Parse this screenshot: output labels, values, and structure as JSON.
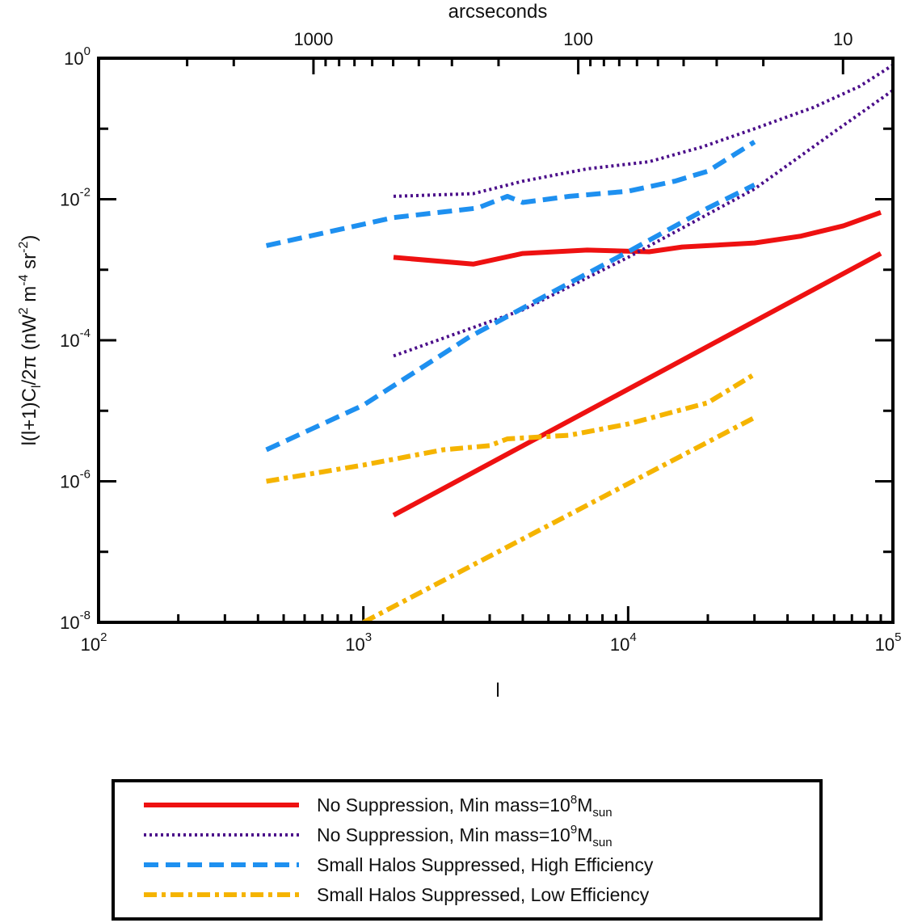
{
  "chart_data": {
    "type": "line",
    "xscale": "log",
    "yscale": "log",
    "xlim": [
      100,
      100000
    ],
    "ylim": [
      1e-08,
      1
    ],
    "xlabel": "l",
    "ylabel": {
      "prefix": "l(l+1)C",
      "sub": "l",
      "middle": "/2π  (nW",
      "sup1": "2",
      "mid2": " m",
      "sup2": "-4",
      "mid3": " sr",
      "sup3": "-2",
      "suffix": ")"
    },
    "top_axis": {
      "title": "arcseconds",
      "ticks": [
        {
          "label": "1000",
          "l": 648
        },
        {
          "label": "100",
          "l": 6480
        },
        {
          "label": "10",
          "l": 64800
        }
      ]
    },
    "x_ticks": [
      {
        "base": "10",
        "exp": "2",
        "value": 100
      },
      {
        "base": "10",
        "exp": "3",
        "value": 1000
      },
      {
        "base": "10",
        "exp": "4",
        "value": 10000
      },
      {
        "base": "10",
        "exp": "5",
        "value": 100000
      }
    ],
    "y_ticks": [
      {
        "base": "10",
        "exp": "0",
        "value": 1
      },
      {
        "base": "10",
        "exp": "-2",
        "value": 0.01
      },
      {
        "base": "10",
        "exp": "-4",
        "value": 0.0001
      },
      {
        "base": "10",
        "exp": "-6",
        "value": 1e-06
      },
      {
        "base": "10",
        "exp": "-8",
        "value": 1e-08
      }
    ],
    "series": [
      {
        "group": "no-suppression-1e8",
        "color": "#ee1111",
        "dash": "solid",
        "curves": [
          {
            "x": [
              1300,
              2600,
              4000,
              7000,
              12000,
              16000,
              20000,
              30000,
              45000,
              65000,
              90000
            ],
            "y": [
              0.0015,
              0.0012,
              0.0017,
              0.0019,
              0.0018,
              0.0021,
              0.0022,
              0.0024,
              0.003,
              0.0042,
              0.0065
            ]
          },
          {
            "x": [
              1300,
              90000
            ],
            "y": [
              3.3e-07,
              0.0017
            ]
          }
        ]
      },
      {
        "group": "no-suppression-1e9",
        "color": "#4b0e8a",
        "dash": "dotted",
        "curves": [
          {
            "x": [
              1300,
              2600,
              4000,
              7000,
              12000,
              19000,
              30000,
              50000,
              75000,
              100000
            ],
            "y": [
              0.011,
              0.012,
              0.018,
              0.027,
              0.034,
              0.055,
              0.1,
              0.2,
              0.4,
              0.8
            ]
          },
          {
            "x": [
              1300,
              4000,
              10000,
              30000,
              60000,
              100000
            ],
            "y": [
              6e-05,
              0.00027,
              0.0015,
              0.014,
              0.09,
              0.35
            ]
          }
        ]
      },
      {
        "group": "small-halos-high",
        "color": "#1e90f0",
        "dash": "dashed",
        "curves": [
          {
            "x": [
              430,
              1300,
              2700,
              3500,
              4000,
              6000,
              10000,
              15000,
              20000,
              30000
            ],
            "y": [
              0.0022,
              0.0055,
              0.0075,
              0.011,
              0.009,
              0.011,
              0.013,
              0.018,
              0.025,
              0.065
            ]
          },
          {
            "x": [
              430,
              1000,
              2500,
              5000,
              10000,
              20000,
              30000
            ],
            "y": [
              2.8e-06,
              1.2e-05,
              0.00011,
              0.00045,
              0.0018,
              0.0075,
              0.016
            ]
          }
        ]
      },
      {
        "group": "small-halos-low",
        "color": "#f5b400",
        "dash": "dash-dot",
        "curves": [
          {
            "x": [
              430,
              1000,
              2000,
              3000,
              3500,
              6000,
              10000,
              20000,
              30000
            ],
            "y": [
              1e-06,
              1.7e-06,
              2.8e-06,
              3.2e-06,
              4e-06,
              4.5e-06,
              6.5e-06,
              1.3e-05,
              3.3e-05
            ]
          },
          {
            "x": [
              1000,
              30000
            ],
            "y": [
              1e-08,
              8e-06
            ]
          }
        ]
      }
    ],
    "legend": {
      "placement": "bottom",
      "entries": [
        {
          "color": "#ee1111",
          "dash": "solid",
          "text": "No Suppression, Min mass=10",
          "sup": "8",
          "mid": "M",
          "sub": "sun"
        },
        {
          "color": "#4b0e8a",
          "dash": "dotted",
          "text": "No Suppression, Min mass=10",
          "sup": "9",
          "mid": "M",
          "sub": "sun"
        },
        {
          "color": "#1e90f0",
          "dash": "dashed",
          "text": "Small Halos Suppressed, High Efficiency",
          "sup": "",
          "mid": "",
          "sub": ""
        },
        {
          "color": "#f5b400",
          "dash": "dash-dot",
          "text": "Small Halos Suppressed, Low Efficiency",
          "sup": "",
          "mid": "",
          "sub": ""
        }
      ]
    }
  }
}
